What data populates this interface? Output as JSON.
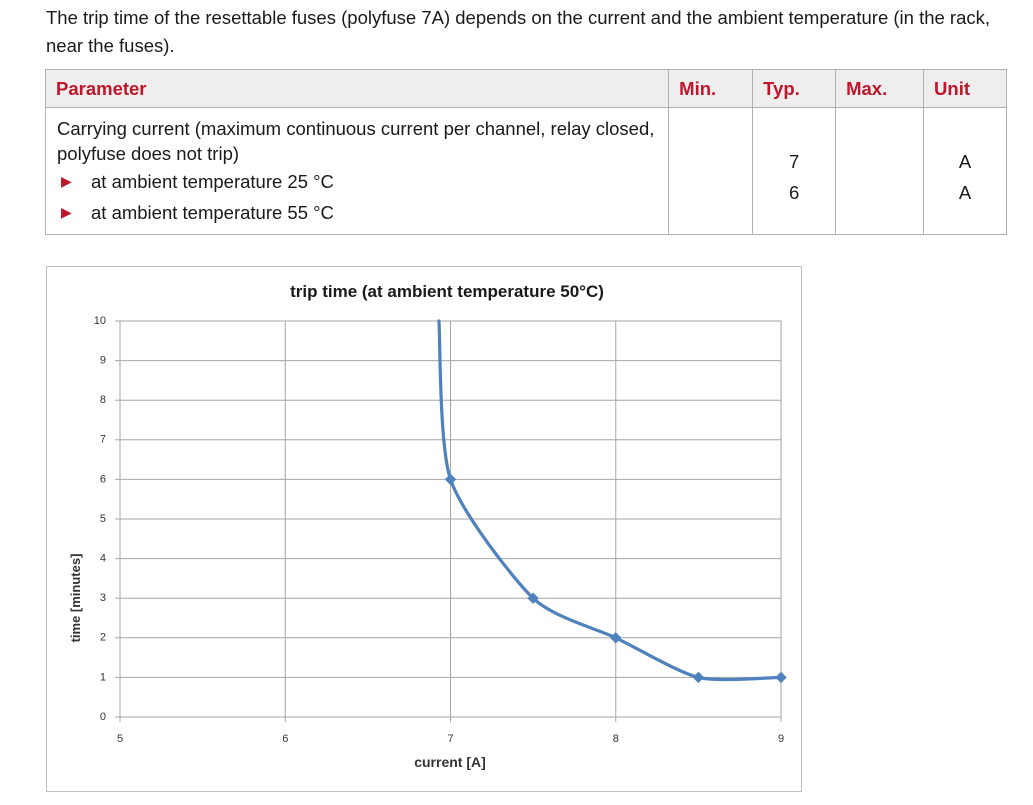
{
  "intro_text": "The trip time of the resettable fuses (polyfuse 7A) depends on the current and the ambient temperature (in the rack, near the fuses).",
  "table": {
    "headers": [
      "Parameter",
      "Min.",
      "Typ.",
      "Max.",
      "Unit"
    ],
    "row": {
      "parameter": "Carrying current (maximum continuous current per channel, relay closed, polyfuse does not trip)",
      "conditions": [
        "at ambient temperature 25 °C",
        "at ambient temperature 55 °C"
      ],
      "min": [
        "",
        ""
      ],
      "typ": [
        "7",
        "6"
      ],
      "max": [
        "",
        ""
      ],
      "unit": [
        "A",
        "A"
      ]
    },
    "accent_color": "#c0162c"
  },
  "chart_data": {
    "type": "line",
    "title": "trip time (at ambient temperature 50°C)",
    "xlabel": "current [A]",
    "ylabel": "time [minutes]",
    "xlim": [
      5,
      9
    ],
    "ylim": [
      0,
      10
    ],
    "x_ticks": [
      "5",
      "6",
      "7",
      "8",
      "9"
    ],
    "y_ticks": [
      "0",
      "1",
      "2",
      "3",
      "4",
      "5",
      "6",
      "7",
      "8",
      "9",
      "10"
    ],
    "grid": true,
    "series": [
      {
        "color": "#4f81bd",
        "x": [
          6.93,
          7.0,
          7.5,
          8.0,
          8.5,
          9.0
        ],
        "y": [
          10,
          6,
          3,
          2,
          1,
          1
        ],
        "markers": [
          false,
          true,
          true,
          true,
          true,
          true
        ]
      }
    ]
  }
}
